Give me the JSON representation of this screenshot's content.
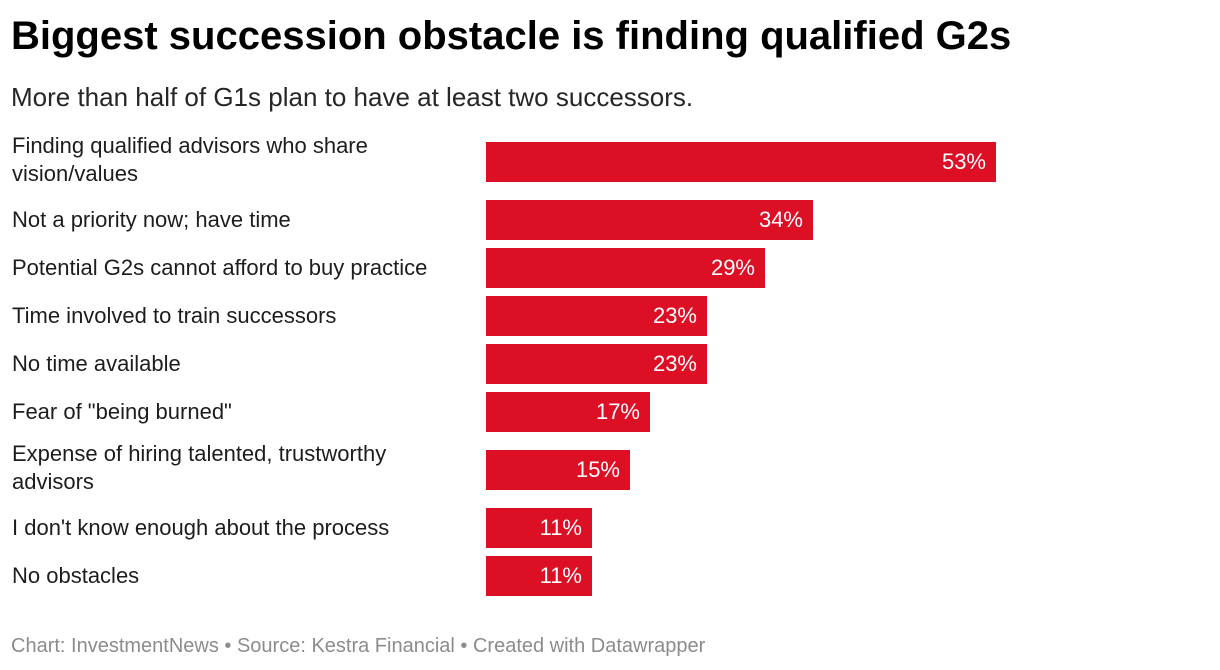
{
  "chart_data": {
    "type": "bar",
    "orientation": "horizontal",
    "title": "Biggest succession obstacle is finding qualified G2s",
    "subtitle": "More than half of G1s plan to have at least two successors.",
    "categories": [
      "Finding qualified advisors who share vision/values",
      "Not a priority now; have time",
      "Potential G2s cannot afford to buy practice",
      "Time involved to train successors",
      "No time available",
      "Fear of \"being burned\"",
      "Expense of hiring talented, trustworthy advisors",
      "I don't know enough about the process",
      "No obstacles"
    ],
    "values": [
      53,
      34,
      29,
      23,
      23,
      17,
      15,
      11,
      11
    ],
    "value_labels": [
      "53%",
      "34%",
      "29%",
      "23%",
      "23%",
      "17%",
      "15%",
      "11%",
      "11%"
    ],
    "unit": "%",
    "xlim": [
      0,
      53
    ],
    "xlabel": "",
    "ylabel": "",
    "grid": false,
    "legend": "none",
    "bar_color": "#dc0f25"
  },
  "footer": {
    "text": "Chart: InvestmentNews • Source: Kestra Financial • Created with Datawrapper"
  }
}
